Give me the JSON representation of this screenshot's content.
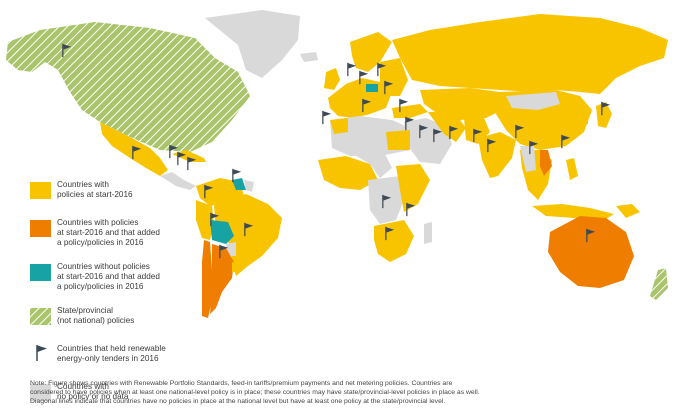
{
  "colors": {
    "policy": "#f8c400",
    "policy_added": "#ef7d00",
    "new_policy": "#17a2a4",
    "subnational": "#a9c46b",
    "subnational_stripe": "#ffffff",
    "no_policy": "#d9d9d9",
    "flag": "#3d4a55",
    "ocean": "#ffffff"
  },
  "legend": [
    {
      "key": "policy",
      "text": "Countries with\npolicies at start-2016"
    },
    {
      "key": "policy_added",
      "text": "Countries with policies\nat start-2016 and that added\na policy/policies in 2016"
    },
    {
      "key": "new_policy",
      "text": "Countries without policies\nat start-2016 and that added\na policy/policies in 2016"
    },
    {
      "key": "subnational",
      "text": "State/provincial\n(not national) policies"
    },
    {
      "key": "flag",
      "text": "Countries that held renewable\nenergy-only tenders in 2016"
    },
    {
      "key": "no_policy",
      "text": "Countries with\nno policy or no data"
    }
  ],
  "note": "Note: Figure shows countries with Renewable Portfolio Standards, feed-in tariffs/premium payments and net metering policies. Countries are\nconsidered to have policies when at least one national-level policy is in place; these countries may have state/provincial-level policies in place as well.\nDiagonal lines indicate that countries have no policies in place at the national level but have at least one policy at the state/provincial level."
}
